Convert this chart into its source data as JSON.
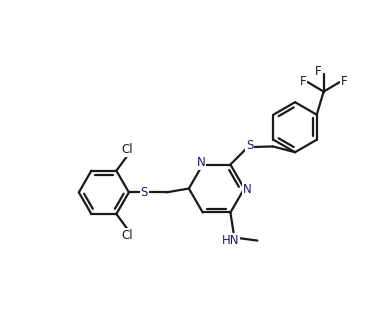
{
  "bg_color": "#ffffff",
  "bond_color": "#1a1a1a",
  "hetero_color": "#1a1a6e",
  "line_width": 1.6,
  "figsize": [
    3.87,
    3.27
  ],
  "dpi": 100,
  "xlim": [
    0,
    10
  ],
  "ylim": [
    0,
    8.5
  ]
}
